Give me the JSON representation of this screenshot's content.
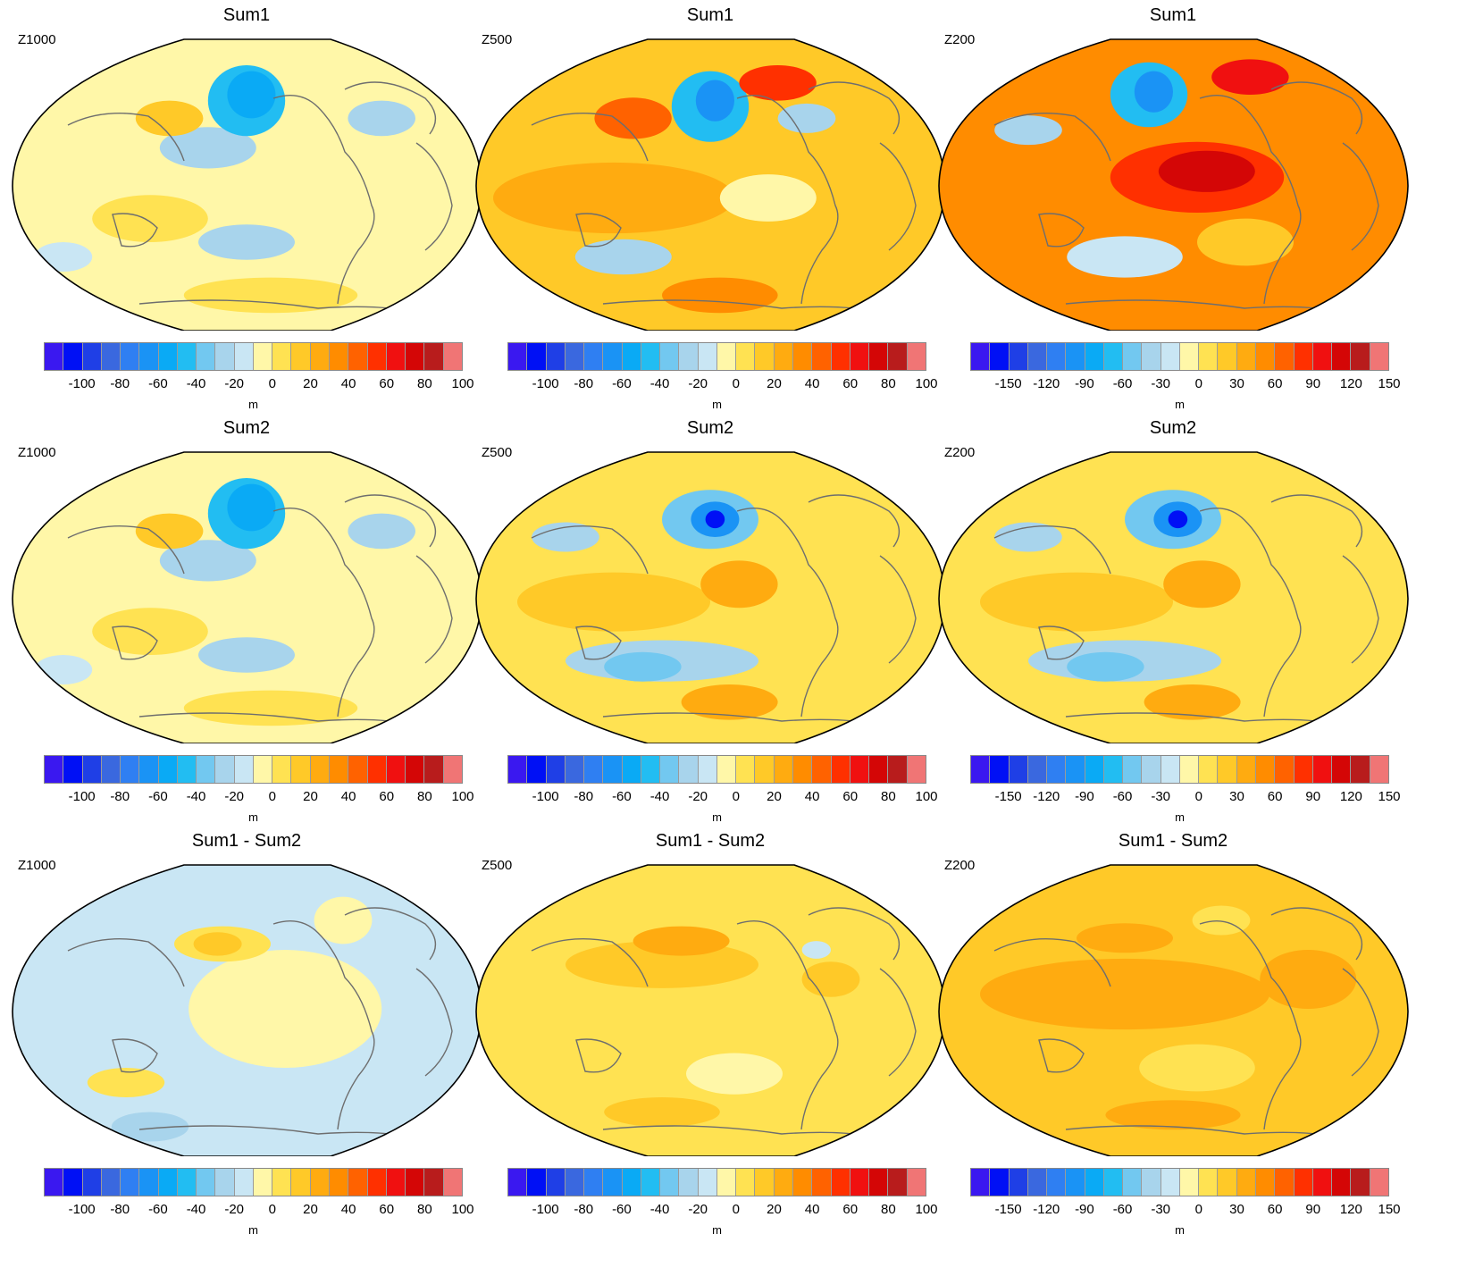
{
  "colorbar": {
    "colors": [
      "#3a18f0",
      "#0010f5",
      "#1f3fe6",
      "#3a68df",
      "#2f7ff2",
      "#1a93f5",
      "#0aaaf5",
      "#22bdf2",
      "#72c8f0",
      "#a8d4ec",
      "#c9e6f4",
      "#fff7a8",
      "#ffe252",
      "#ffc928",
      "#ffab10",
      "#ff8c00",
      "#ff6200",
      "#ff3000",
      "#f01010",
      "#d40606",
      "#b81c1c",
      "#f07575"
    ],
    "unit": "m"
  },
  "ticks_100": [
    "-100",
    "-80",
    "-60",
    "-40",
    "-20",
    "0",
    "20",
    "40",
    "60",
    "80",
    "100"
  ],
  "ticks_150": [
    "-150",
    "-120",
    "-90",
    "-60",
    "-30",
    "0",
    "30",
    "60",
    "90",
    "120",
    "150"
  ],
  "panels": [
    {
      "title": "Sum1",
      "level": "Z1000",
      "scale": "100",
      "style": "weak"
    },
    {
      "title": "Sum1",
      "level": "Z500",
      "scale": "100",
      "style": "warm"
    },
    {
      "title": "Sum1",
      "level": "Z200",
      "scale": "150",
      "style": "hot"
    },
    {
      "title": "Sum2",
      "level": "Z1000",
      "scale": "100",
      "style": "weak"
    },
    {
      "title": "Sum2",
      "level": "Z500",
      "scale": "100",
      "style": "mixed"
    },
    {
      "title": "Sum2",
      "level": "Z200",
      "scale": "150",
      "style": "mixed"
    },
    {
      "title": "Sum1 - Sum2",
      "level": "Z1000",
      "scale": "100",
      "style": "cool"
    },
    {
      "title": "Sum1 - Sum2",
      "level": "Z500",
      "scale": "100",
      "style": "yellow"
    },
    {
      "title": "Sum1 - Sum2",
      "level": "Z200",
      "scale": "150",
      "style": "orange"
    }
  ]
}
